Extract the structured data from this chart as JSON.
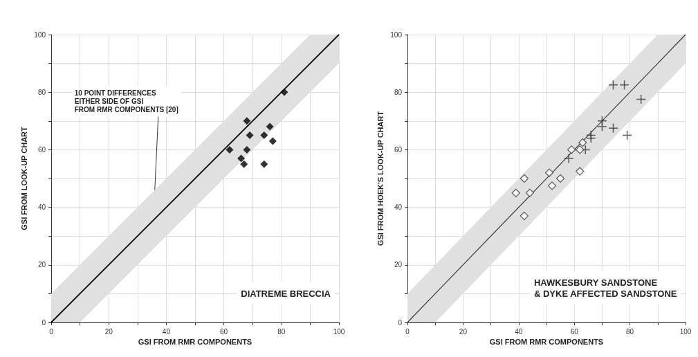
{
  "chart_data": [
    {
      "type": "scatter",
      "xlabel": "GSI FROM RMR COMPONENTS",
      "ylabel": "GSI FROM LOOK-UP CHART",
      "xlim": [
        0,
        100
      ],
      "ylim": [
        0,
        100
      ],
      "xticks": [
        0,
        {
          "value": 10,
          "label": null
        },
        20,
        {
          "value": 30,
          "label": null
        },
        40,
        {
          "value": 50,
          "label": null
        },
        60,
        {
          "value": 70,
          "label": null
        },
        80,
        {
          "value": 90,
          "label": null
        },
        100
      ],
      "yticks": [
        0,
        {
          "value": 10,
          "label": null
        },
        20,
        {
          "value": 30,
          "label": null
        },
        40,
        {
          "value": 50,
          "label": null
        },
        60,
        {
          "value": 70,
          "label": null
        },
        80,
        {
          "value": 90,
          "label": null
        },
        100
      ],
      "grid": true,
      "series": [
        {
          "type": "line",
          "color": "#000000",
          "marker": "none",
          "x": [
            0,
            10,
            90,
            100
          ],
          "values": [
            0,
            10,
            90,
            100
          ],
          "lower": [
            0,
            0,
            80,
            90
          ],
          "upper": [
            10,
            20,
            100,
            100
          ]
        },
        {
          "color": "#000000",
          "marker": "diamond",
          "x": [
            81,
            68,
            76,
            69,
            74,
            77,
            62,
            68,
            66,
            67,
            74
          ],
          "values": [
            80,
            70,
            68,
            65,
            65,
            63,
            60,
            60,
            57,
            55,
            55
          ]
        }
      ],
      "annotations": [
        {
          "text": "10 POINT DIFFERENCES\nEITHER SIDE OF GSI\nFROM RMR COMPONENTS [20]",
          "x": 36,
          "y": 46
        },
        "DIATREME BRECCIA"
      ]
    },
    {
      "type": "scatter",
      "xlabel": "GSI FROM RMR COMPONENTS",
      "ylabel": "GSI FROM HOEK'S LOOK-UP CHART",
      "xlim": [
        0,
        100
      ],
      "ylim": [
        0,
        100
      ],
      "xticks": [
        0,
        {
          "value": 10,
          "label": null
        },
        20,
        {
          "value": 30,
          "label": null
        },
        40,
        {
          "value": 50,
          "label": null
        },
        60,
        {
          "value": 70,
          "label": null
        },
        80,
        {
          "value": 90,
          "label": null
        },
        100
      ],
      "yticks": [
        0,
        {
          "value": 10,
          "label": null
        },
        20,
        {
          "value": 30,
          "label": null
        },
        40,
        {
          "value": 50,
          "label": null
        },
        60,
        {
          "value": 70,
          "label": null
        },
        80,
        {
          "value": 90,
          "label": null
        },
        100
      ],
      "grid": true,
      "series": [
        {
          "type": "line",
          "color": "#333333",
          "marker": "none",
          "x": [
            0,
            10,
            90,
            100
          ],
          "values": [
            0,
            10,
            90,
            100
          ],
          "lower": [
            0,
            0,
            80,
            90
          ],
          "upper": [
            10,
            20,
            100,
            100
          ]
        },
        {
          "color": "#333333",
          "marker": "cross",
          "x": [
            74,
            78,
            84,
            70,
            70,
            74,
            79,
            66,
            66,
            64,
            58
          ],
          "values": [
            82.5,
            82.5,
            77.5,
            70,
            68,
            67.5,
            65,
            65,
            64,
            60,
            57
          ]
        },
        {
          "color": "#333333",
          "marker": "diamond",
          "x": [
            63,
            59,
            62,
            62,
            51,
            55,
            52,
            42,
            39,
            44,
            42
          ],
          "values": [
            62.5,
            60,
            60,
            52.5,
            52,
            50,
            47.5,
            50,
            45,
            45,
            37
          ]
        }
      ],
      "annotations": [
        "HAWKESBURY SANDSTONE\n& DYKE AFFECTED SANDSTONE"
      ]
    }
  ]
}
